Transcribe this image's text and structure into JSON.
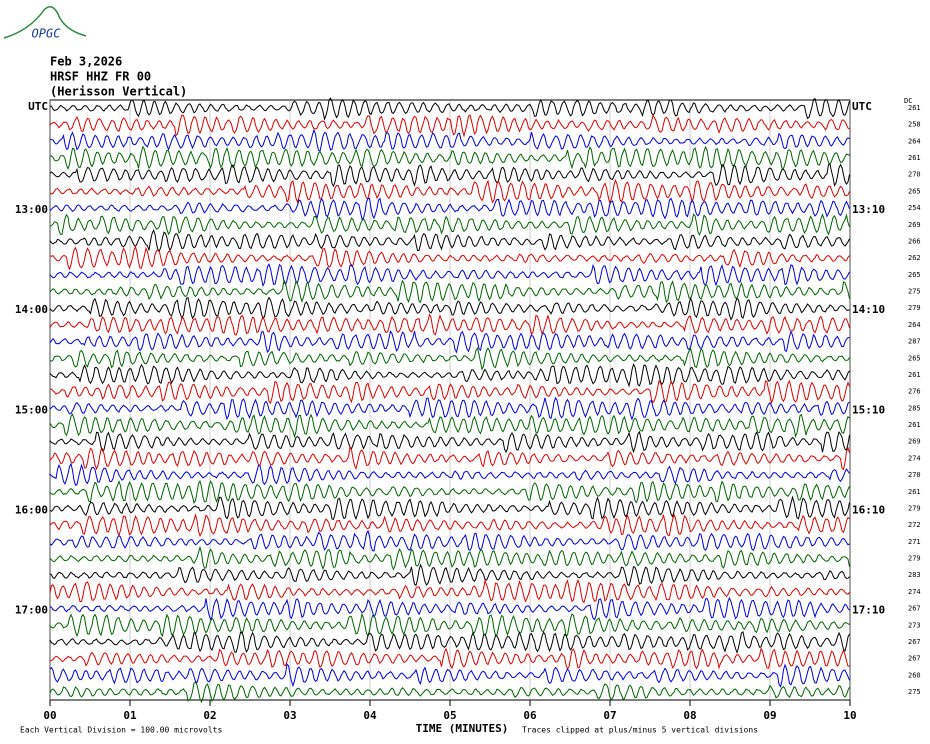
{
  "logo": "OPGC",
  "header": {
    "date": "Feb 3,2026",
    "station": "HRSF HHZ FR 00",
    "location": "(Herisson Vertical)"
  },
  "left_labels": [
    "UTC",
    "13:00",
    "14:00",
    "15:00",
    "16:00",
    "17:00"
  ],
  "right_labels": [
    "UTC",
    "13:10",
    "14:10",
    "15:10",
    "16:10",
    "17:10"
  ],
  "dc_title": "DC",
  "dc_offsets": [
    261,
    258,
    264,
    261,
    270,
    265,
    254,
    269,
    266,
    262,
    265,
    275,
    279,
    264,
    287,
    265,
    261,
    276,
    285,
    261,
    269,
    274,
    270,
    261,
    279,
    272,
    271,
    279,
    283,
    274,
    267,
    273,
    267,
    267,
    260,
    275
  ],
  "x_ticks": [
    "00",
    "01",
    "02",
    "03",
    "04",
    "05",
    "06",
    "07",
    "08",
    "09",
    "10"
  ],
  "x_axis_title": "TIME (MINUTES)",
  "footer_left": "Each Vertical Division =  100.00 microvolts",
  "footer_right": "Traces clipped at plus/minus 5 vertical divisions"
}
